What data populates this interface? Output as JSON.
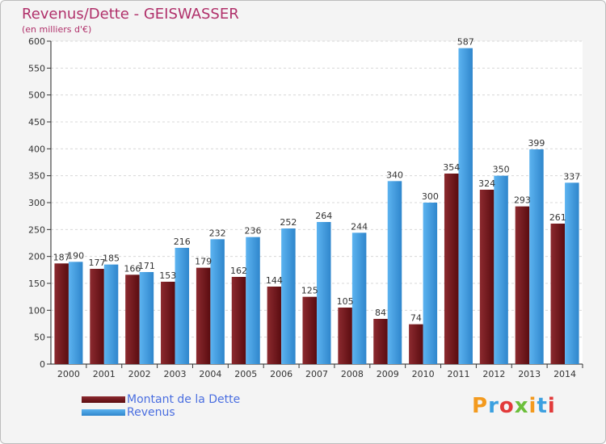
{
  "chart_data": {
    "type": "bar",
    "title": "Revenus/Dette - GEISWASSER",
    "subtitle": "(en milliers d'€)",
    "categories": [
      "2000",
      "2001",
      "2002",
      "2003",
      "2004",
      "2005",
      "2006",
      "2007",
      "2008",
      "2009",
      "2010",
      "2011",
      "2012",
      "2013",
      "2014"
    ],
    "series": [
      {
        "name": "Montant de la Dette",
        "color": "#7a1a1f",
        "values": [
          187,
          177,
          166,
          153,
          179,
          162,
          144,
          125,
          105,
          84,
          74,
          354,
          324,
          293,
          261
        ]
      },
      {
        "name": "Revenus",
        "color": "#4aa3e6",
        "values": [
          190,
          185,
          171,
          216,
          232,
          236,
          252,
          264,
          244,
          340,
          300,
          587,
          350,
          399,
          337
        ]
      }
    ],
    "y_ticks": [
      0,
      50,
      100,
      150,
      200,
      250,
      300,
      350,
      400,
      450,
      500,
      550,
      600
    ],
    "ylim": [
      0,
      600
    ],
    "grid": true,
    "legend_position": "bottom-left"
  },
  "branding": {
    "logo_text": "Proxiti",
    "logo_colors": [
      "#f39a1e",
      "#3ca0e0",
      "#e23a3a",
      "#6cbf3b",
      "#f39a1e",
      "#3ca0e0",
      "#e23a3a"
    ]
  }
}
